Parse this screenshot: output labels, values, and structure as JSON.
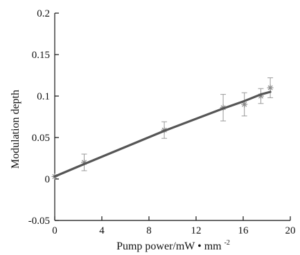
{
  "chart_data": {
    "type": "line",
    "title": "",
    "xlabel": "Pump power/mW",
    "xlabel_unit_suffix": "mm",
    "xlabel_unit_exponent": "-2",
    "ylabel": "Modulation depth",
    "xlim": [
      0,
      20
    ],
    "ylim": [
      -0.05,
      0.2
    ],
    "x_ticks": [
      0,
      4,
      8,
      12,
      16,
      20
    ],
    "x_tick_labels": [
      "0",
      "4",
      "8",
      "12",
      "16",
      "20"
    ],
    "y_ticks": [
      -0.05,
      0,
      0.05,
      0.1,
      0.15,
      0.2
    ],
    "y_tick_labels": [
      "-0.05",
      "0",
      "0.05",
      "0.1",
      "0.15",
      "0.2"
    ],
    "grid": false,
    "measured": {
      "marker": "asterisk",
      "color": "#8a8a8a",
      "points": [
        {
          "x": 0.0,
          "y": 0.003,
          "err": 0.0
        },
        {
          "x": 2.5,
          "y": 0.02,
          "err": 0.01
        },
        {
          "x": 9.3,
          "y": 0.059,
          "err": 0.01
        },
        {
          "x": 14.3,
          "y": 0.086,
          "err": 0.016
        },
        {
          "x": 16.1,
          "y": 0.09,
          "err": 0.014
        },
        {
          "x": 17.5,
          "y": 0.1,
          "err": 0.009
        },
        {
          "x": 18.3,
          "y": 0.11,
          "err": 0.012
        }
      ]
    },
    "fit": {
      "color": "#555555",
      "points": [
        {
          "x": 0.0,
          "y": 0.003
        },
        {
          "x": 2.5,
          "y": 0.018
        },
        {
          "x": 9.3,
          "y": 0.058
        },
        {
          "x": 14.3,
          "y": 0.085
        },
        {
          "x": 16.1,
          "y": 0.094
        },
        {
          "x": 17.5,
          "y": 0.102
        },
        {
          "x": 18.3,
          "y": 0.105
        }
      ]
    }
  }
}
